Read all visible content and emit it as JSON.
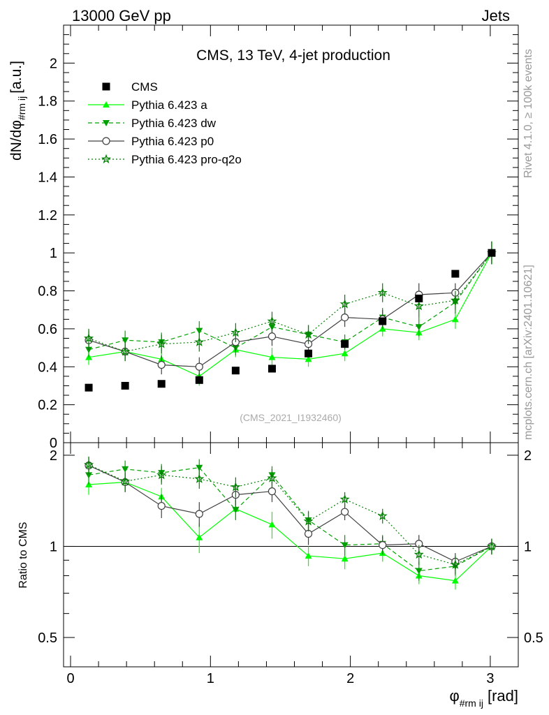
{
  "header": {
    "left": "13000 GeV pp",
    "right": "Jets"
  },
  "side_labels": {
    "rivet": "Rivet 4.1.0, ≥ 100k events",
    "mcplots": "mcplots.cern.ch [arXiv:2401.10621]"
  },
  "chart_data": {
    "type": "scatter",
    "title": "CMS, 13 TeV, 4-jet production",
    "watermark": "(CMS_2021_I1932460)",
    "ylabel_main": "dN/dφ",
    "ylabel_main_sub": "#rm ij",
    "ylabel_main_unit": "[a.u.]",
    "ylabel_ratio": "Ratio to CMS",
    "xlabel": "φ",
    "xlabel_sub": "#rm ij",
    "xlabel_unit": "[rad]",
    "xlim": [
      -0.05,
      3.2
    ],
    "ylim_main": [
      0,
      2.2
    ],
    "ylim_ratio": [
      0.4,
      2.2
    ],
    "x_ticks": [
      "0",
      "1",
      "2",
      "3"
    ],
    "y_ticks_main": [
      "0",
      "0.2",
      "0.4",
      "0.6",
      "0.8",
      "1",
      "1.2",
      "1.4",
      "1.6",
      "1.8",
      "2"
    ],
    "y_ticks_ratio": [
      "0.5",
      "1",
      "2"
    ],
    "x": [
      0.13,
      0.39,
      0.65,
      0.92,
      1.18,
      1.44,
      1.7,
      1.96,
      2.23,
      2.49,
      2.75,
      3.01
    ],
    "series": [
      {
        "name": "CMS",
        "color": "#000000",
        "marker": "square",
        "values": [
          0.29,
          0.3,
          0.31,
          0.33,
          0.38,
          0.39,
          0.47,
          0.52,
          0.64,
          0.76,
          0.89,
          1.0
        ],
        "errors": [
          0.0,
          0.0,
          0.0,
          0.0,
          0.0,
          0.0,
          0.0,
          0.0,
          0.0,
          0.0,
          0.0,
          0.0
        ],
        "ratio": [
          1.0,
          1.0,
          1.0,
          1.0,
          1.0,
          1.0,
          1.0,
          1.0,
          1.0,
          1.0,
          1.0,
          1.0
        ]
      },
      {
        "name": "Pythia 6.423 a",
        "color": "#00ff00",
        "marker": "triangle-up",
        "line": "solid",
        "values": [
          0.45,
          0.48,
          0.44,
          0.35,
          0.49,
          0.45,
          0.44,
          0.47,
          0.6,
          0.58,
          0.65,
          1.0
        ],
        "errors": [
          0.04,
          0.04,
          0.04,
          0.05,
          0.04,
          0.05,
          0.04,
          0.04,
          0.04,
          0.04,
          0.05,
          0.06
        ],
        "ratio": [
          1.6,
          1.63,
          1.46,
          1.07,
          1.33,
          1.18,
          0.93,
          0.91,
          0.95,
          0.8,
          0.77,
          1.0
        ],
        "ratio_errors": [
          0.12,
          0.12,
          0.1,
          0.12,
          0.1,
          0.12,
          0.07,
          0.07,
          0.06,
          0.05,
          0.05,
          0.06
        ]
      },
      {
        "name": "Pythia 6.423 dw",
        "color": "#00a000",
        "marker": "triangle-down",
        "line": "dashed",
        "values": [
          0.49,
          0.54,
          0.53,
          0.59,
          0.5,
          0.61,
          0.57,
          0.53,
          0.66,
          0.61,
          0.74,
          1.0
        ],
        "errors": [
          0.04,
          0.05,
          0.05,
          0.05,
          0.04,
          0.05,
          0.05,
          0.04,
          0.05,
          0.05,
          0.06,
          0.06
        ],
        "ratio": [
          1.72,
          1.8,
          1.75,
          1.82,
          1.32,
          1.72,
          1.22,
          1.01,
          1.02,
          0.83,
          0.86,
          1.0
        ],
        "ratio_errors": [
          0.12,
          0.12,
          0.12,
          0.12,
          0.1,
          0.12,
          0.09,
          0.08,
          0.07,
          0.06,
          0.06,
          0.06
        ]
      },
      {
        "name": "Pythia 6.423 p0",
        "color": "#404040",
        "marker": "circle-open",
        "line": "solid",
        "values": [
          0.54,
          0.48,
          0.41,
          0.4,
          0.53,
          0.56,
          0.52,
          0.66,
          0.65,
          0.78,
          0.79,
          1.0
        ],
        "errors": [
          0.05,
          0.05,
          0.05,
          0.05,
          0.05,
          0.05,
          0.05,
          0.05,
          0.05,
          0.06,
          0.05,
          0.06
        ],
        "ratio": [
          1.85,
          1.63,
          1.36,
          1.28,
          1.48,
          1.52,
          1.1,
          1.3,
          1.01,
          1.02,
          0.89,
          1.0
        ],
        "ratio_errors": [
          0.12,
          0.12,
          0.12,
          0.12,
          0.12,
          0.12,
          0.09,
          0.08,
          0.07,
          0.07,
          0.06,
          0.06
        ]
      },
      {
        "name": "Pythia 6.423 pro-q2o",
        "color": "#008000",
        "marker": "star",
        "line": "dotted",
        "values": [
          0.55,
          0.48,
          0.52,
          0.53,
          0.58,
          0.64,
          0.57,
          0.73,
          0.79,
          0.72,
          0.75,
          1.0
        ],
        "errors": [
          0.05,
          0.05,
          0.05,
          0.05,
          0.05,
          0.05,
          0.05,
          0.05,
          0.05,
          0.06,
          0.05,
          0.06
        ],
        "ratio": [
          1.86,
          1.64,
          1.72,
          1.67,
          1.57,
          1.68,
          1.21,
          1.43,
          1.26,
          0.94,
          0.87,
          1.0
        ],
        "ratio_errors": [
          0.12,
          0.12,
          0.12,
          0.12,
          0.12,
          0.12,
          0.09,
          0.08,
          0.07,
          0.07,
          0.06,
          0.06
        ]
      }
    ]
  }
}
